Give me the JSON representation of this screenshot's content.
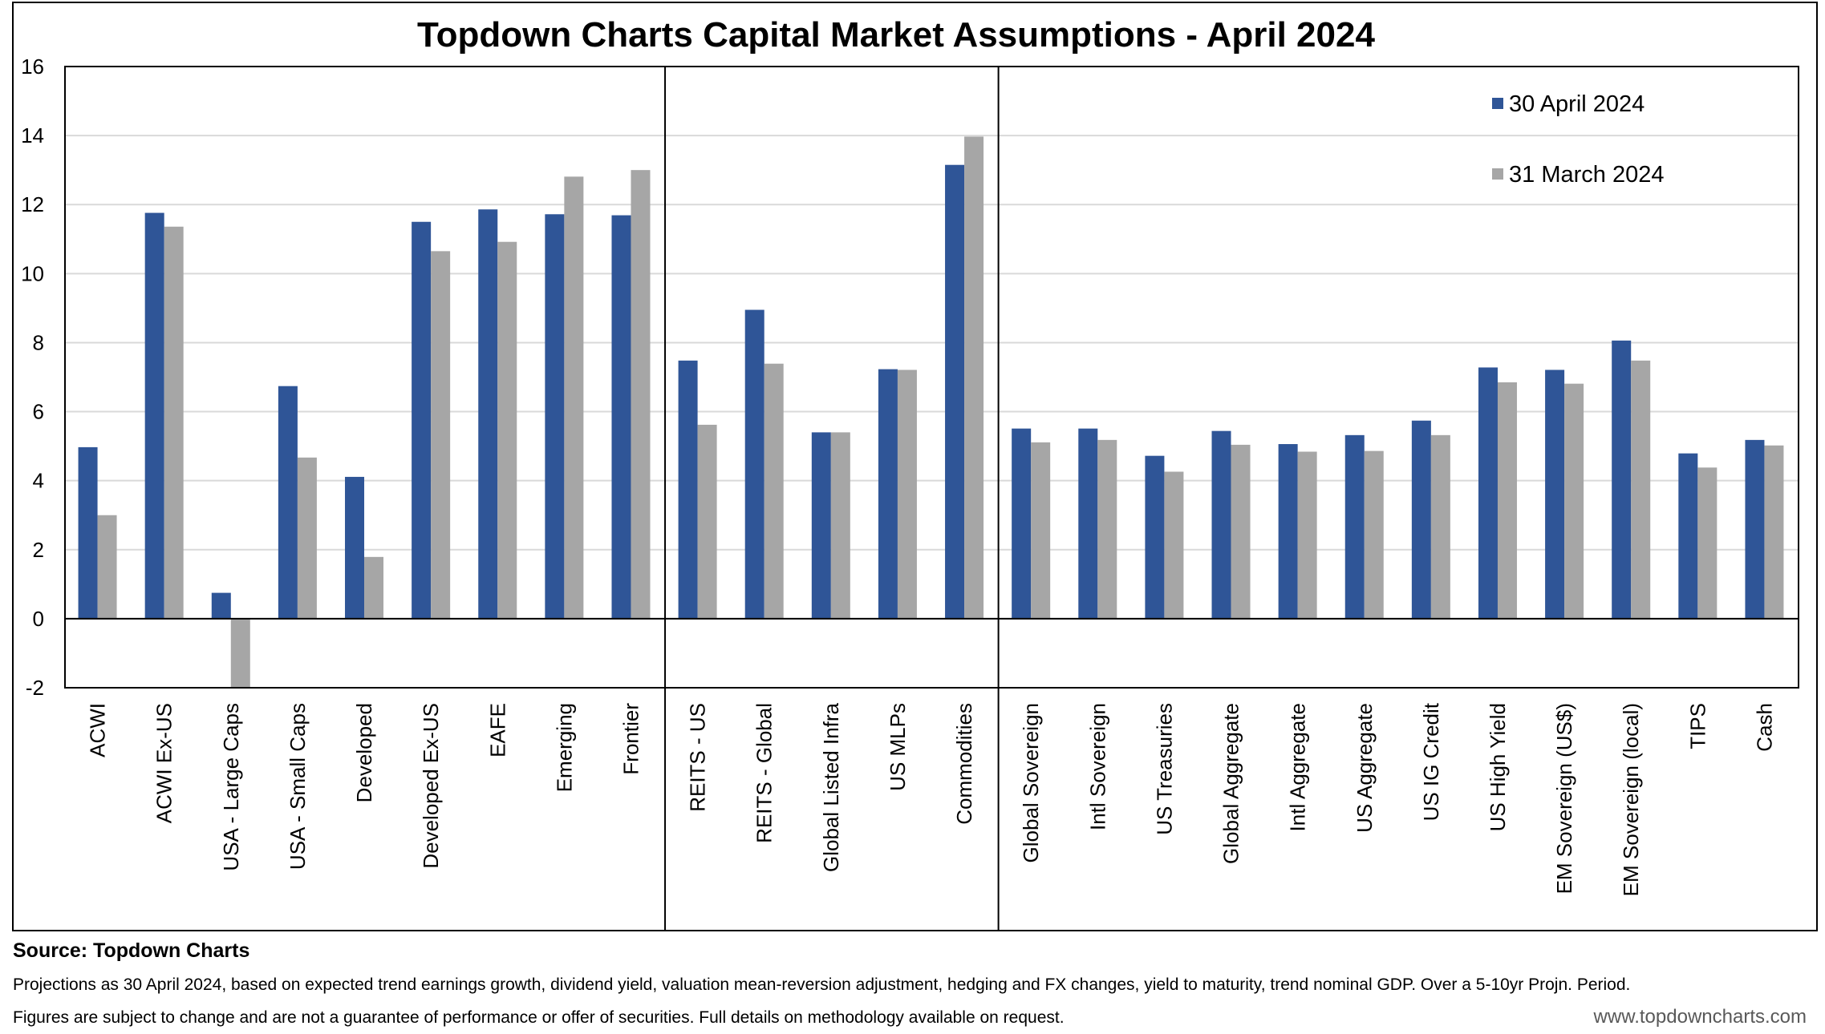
{
  "chart_data": {
    "type": "bar",
    "title": "Topdown Charts Capital Market Assumptions - April 2024",
    "ylim": [
      -2,
      16
    ],
    "yticks": [
      -2,
      0,
      2,
      4,
      6,
      8,
      10,
      12,
      14,
      16
    ],
    "grid": true,
    "legend_position": "top-right",
    "groups": [
      {
        "categories": [
          "ACWI",
          "ACWI Ex-US",
          "USA - Large Caps",
          "USA - Small Caps",
          "Developed",
          "Developed Ex-US",
          "EAFE",
          "Emerging",
          "Frontier"
        ]
      },
      {
        "categories": [
          "REITS - US",
          "REITS - Global",
          "Global Listed Infra",
          "US MLPs",
          "Commodities"
        ]
      },
      {
        "categories": [
          "Global Sovereign",
          "Intl Sovereign",
          "US Treasuries",
          "Global Aggregate",
          "Intl Aggregate",
          "US Aggregate",
          "US IG Credit",
          "US High Yield",
          "EM Sovereign (US$)",
          "EM Sovereign (local)",
          "TIPS",
          "Cash"
        ]
      }
    ],
    "categories": [
      "ACWI",
      "ACWI Ex-US",
      "USA - Large Caps",
      "USA - Small Caps",
      "Developed",
      "Developed Ex-US",
      "EAFE",
      "Emerging",
      "Frontier",
      "REITS - US",
      "REITS - Global",
      "Global Listed Infra",
      "US MLPs",
      "Commodities",
      "Global Sovereign",
      "Intl Sovereign",
      "US Treasuries",
      "Global Aggregate",
      "Intl Aggregate",
      "US Aggregate",
      "US IG Credit",
      "US High Yield",
      "EM Sovereign (US$)",
      "EM Sovereign (local)",
      "TIPS",
      "Cash"
    ],
    "series": [
      {
        "name": "30 April 2024",
        "color": "#2F5597",
        "values": [
          4.97,
          11.76,
          0.75,
          6.74,
          4.11,
          11.5,
          11.86,
          11.72,
          11.69,
          7.48,
          8.95,
          5.4,
          7.23,
          13.15,
          5.51,
          5.51,
          4.72,
          5.44,
          5.06,
          5.32,
          5.74,
          7.28,
          7.21,
          8.06,
          4.79,
          5.18
        ]
      },
      {
        "name": "31 March 2024",
        "color": "#A6A6A6",
        "values": [
          3.0,
          11.36,
          -2.0,
          4.67,
          1.79,
          10.65,
          10.92,
          12.81,
          13.0,
          5.62,
          7.39,
          5.4,
          7.21,
          13.97,
          5.11,
          5.18,
          4.26,
          5.04,
          4.84,
          4.86,
          5.32,
          6.85,
          6.81,
          7.48,
          4.38,
          5.02
        ]
      }
    ]
  },
  "footer": {
    "source": "Source: Topdown Charts",
    "note1": "Projections as 30 April 2024, based on expected trend earnings growth, dividend yield, valuation mean-reversion adjustment, hedging and FX changes, yield to maturity, trend nominal GDP. Over a  5-10yr Projn. Period.",
    "note2": "Figures are subject to change and are not a guarantee of performance or offer of securities.  Full details on methodology available on request.",
    "website": "www.topdowncharts.com"
  }
}
